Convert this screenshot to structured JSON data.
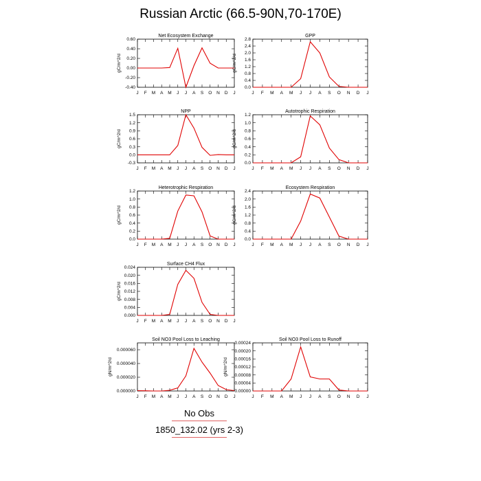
{
  "title": "Russian Arctic (66.5-90N,70-170E)",
  "legend": {
    "obs_label": "No Obs",
    "model_label": "1850_132.02 (yrs 2-3)"
  },
  "colors": {
    "model": "#e00000",
    "axes": "#000000"
  },
  "chart_data": [
    {
      "type": "line",
      "title": "Net Ecosystem Exchange",
      "ylabel": "gC/m^2/d",
      "categories": [
        "J",
        "F",
        "M",
        "A",
        "M",
        "J",
        "J",
        "A",
        "S",
        "O",
        "N",
        "D",
        "J"
      ],
      "yticks": [
        "0.60",
        "0.40",
        "0.20",
        "0.00",
        "-0.20",
        "-0.40"
      ],
      "ylim": [
        -0.4,
        0.6
      ],
      "values": [
        0,
        0,
        0,
        0,
        0.01,
        0.41,
        -0.4,
        0.05,
        0.42,
        0.1,
        0.0,
        0,
        0
      ]
    },
    {
      "type": "line",
      "title": "GPP",
      "ylabel": "gC/m^2/d",
      "categories": [
        "J",
        "F",
        "M",
        "A",
        "M",
        "J",
        "J",
        "A",
        "S",
        "O",
        "N",
        "D",
        "J"
      ],
      "yticks": [
        "2.8",
        "2.4",
        "2.0",
        "1.6",
        "1.2",
        "0.8",
        "0.4",
        "0.0"
      ],
      "ylim": [
        0,
        2.8
      ],
      "values": [
        0,
        0,
        0,
        0,
        0,
        0.5,
        2.65,
        2.0,
        0.6,
        0.05,
        0,
        0,
        0
      ]
    },
    {
      "type": "line",
      "title": "NPP",
      "ylabel": "gC/m^2/d",
      "categories": [
        "J",
        "F",
        "M",
        "A",
        "M",
        "J",
        "J",
        "A",
        "S",
        "O",
        "N",
        "D",
        "J"
      ],
      "yticks": [
        "1.5",
        "1.2",
        "0.9",
        "0.6",
        "0.3",
        "0.0",
        "-0.3"
      ],
      "ylim": [
        -0.3,
        1.5
      ],
      "values": [
        0,
        0,
        0,
        0,
        0,
        0.35,
        1.5,
        1.0,
        0.28,
        -0.02,
        0.01,
        0,
        0
      ]
    },
    {
      "type": "line",
      "title": "Autotrophic Respiration",
      "ylabel": "gC/m^2/d",
      "categories": [
        "J",
        "F",
        "M",
        "A",
        "M",
        "J",
        "J",
        "A",
        "S",
        "O",
        "N",
        "D",
        "J"
      ],
      "yticks": [
        "1.2",
        "1.0",
        "0.8",
        "0.6",
        "0.4",
        "0.2",
        "0.0"
      ],
      "ylim": [
        0,
        1.2
      ],
      "values": [
        0,
        0,
        0,
        0,
        0,
        0.15,
        1.17,
        0.95,
        0.37,
        0.08,
        0,
        0,
        0
      ]
    },
    {
      "type": "line",
      "title": "Heterotrophic Respiration",
      "ylabel": "gC/m^2/d",
      "categories": [
        "J",
        "F",
        "M",
        "A",
        "M",
        "J",
        "J",
        "A",
        "S",
        "O",
        "N",
        "D",
        "J"
      ],
      "yticks": [
        "1.2",
        "1.0",
        "0.8",
        "0.6",
        "0.4",
        "0.2",
        "0.0"
      ],
      "ylim": [
        0,
        1.2
      ],
      "values": [
        0,
        0,
        0,
        0,
        0.02,
        0.7,
        1.1,
        1.08,
        0.68,
        0.08,
        0.0,
        0,
        0
      ]
    },
    {
      "type": "line",
      "title": "Ecosystem Respiration",
      "ylabel": "gC/m^2/d",
      "categories": [
        "J",
        "F",
        "M",
        "A",
        "M",
        "J",
        "J",
        "A",
        "S",
        "O",
        "N",
        "D",
        "J"
      ],
      "yticks": [
        "2.4",
        "2.0",
        "1.6",
        "1.2",
        "0.8",
        "0.4",
        "0.0"
      ],
      "ylim": [
        0,
        2.4
      ],
      "values": [
        0,
        0,
        0,
        0,
        0,
        0.9,
        2.25,
        2.05,
        1.1,
        0.15,
        0,
        0,
        0
      ]
    },
    {
      "type": "line",
      "title": "Surface CH4 Flux",
      "ylabel": "gC/m^2/d",
      "categories": [
        "J",
        "F",
        "M",
        "A",
        "M",
        "J",
        "J",
        "A",
        "S",
        "O",
        "N",
        "D",
        "J"
      ],
      "yticks": [
        "0.024",
        "0.020",
        "0.016",
        "0.012",
        "0.008",
        "0.004",
        "0.000"
      ],
      "ylim": [
        0,
        0.024
      ],
      "values": [
        0,
        0,
        0,
        0,
        0.0005,
        0.0155,
        0.0225,
        0.0185,
        0.0065,
        0.0005,
        0,
        0,
        0
      ]
    },
    {
      "type": "line",
      "title": "Soil NO3 Pool Loss to Leaching",
      "ylabel": "gN/m^2/d",
      "categories": [
        "J",
        "F",
        "M",
        "A",
        "M",
        "J",
        "J",
        "A",
        "S",
        "O",
        "N",
        "D",
        "J"
      ],
      "yticks": [
        "0.000060",
        "0.000040",
        "0.000020",
        "0.000000"
      ],
      "ylim": [
        0,
        7e-05
      ],
      "values": [
        5e-07,
        3e-07,
        0,
        0,
        1e-06,
        4.5e-06,
        2.2e-05,
        6.2e-05,
        4.2e-05,
        2.6e-05,
        8e-06,
        2e-06,
        5e-07
      ]
    },
    {
      "type": "line",
      "title": "Soil NO3 Pool Loss to Runoff",
      "ylabel": "gN/m^2/d",
      "categories": [
        "J",
        "F",
        "M",
        "A",
        "M",
        "J",
        "J",
        "A",
        "S",
        "O",
        "N",
        "D",
        "J"
      ],
      "yticks": [
        "0.00024",
        "0.00020",
        "0.00016",
        "0.00012",
        "0.00008",
        "0.00004",
        "0.00000"
      ],
      "ylim": [
        0,
        0.00024
      ],
      "values": [
        0,
        0,
        0,
        0,
        6e-05,
        0.00022,
        7e-05,
        6e-05,
        6e-05,
        5e-06,
        0,
        0,
        0
      ]
    }
  ]
}
